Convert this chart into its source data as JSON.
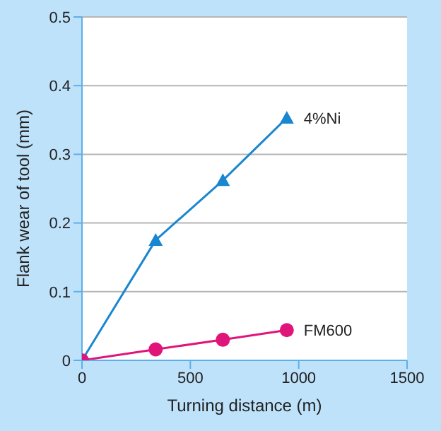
{
  "chart_data": {
    "type": "line",
    "xlabel": "Turning distance (m)",
    "ylabel": "Flank wear of tool (mm)",
    "xlim": [
      0,
      1500
    ],
    "xticks": [
      0,
      500,
      1000,
      1500
    ],
    "ylim": [
      0,
      0.5
    ],
    "yticks": [
      0,
      0.1,
      0.2,
      0.3,
      0.4,
      0.5
    ],
    "grid": "y",
    "legend": false,
    "series": [
      {
        "name": "4%Ni",
        "color": "#1a86d0",
        "marker": "triangle",
        "x": [
          0,
          340,
          650,
          945
        ],
        "values": [
          0,
          0.175,
          0.262,
          0.353
        ]
      },
      {
        "name": "FM600",
        "color": "#e0157a",
        "marker": "circle",
        "x": [
          0,
          340,
          650,
          945
        ],
        "values": [
          0,
          0.016,
          0.03,
          0.044
        ]
      }
    ]
  }
}
